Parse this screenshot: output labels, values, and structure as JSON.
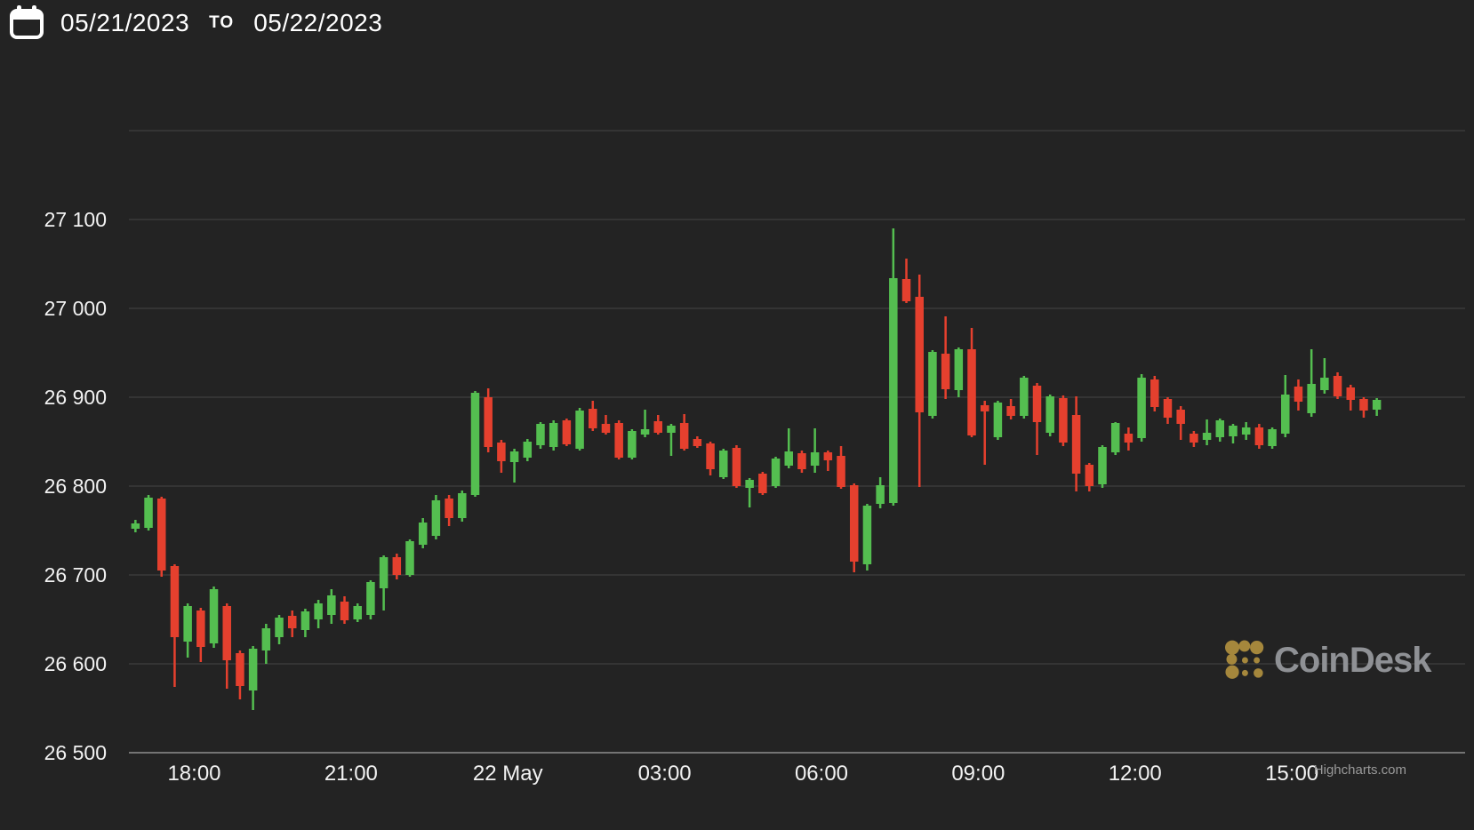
{
  "header": {
    "calendar_icon": "calendar-icon",
    "start_date": "05/21/2023",
    "to_label": "TO",
    "end_date": "05/22/2023"
  },
  "watermark": {
    "brand": "CoinDesk"
  },
  "credit": {
    "label": "Highcharts.com"
  },
  "colors": {
    "background": "#232323",
    "up": "#54BE50",
    "down": "#E5402E",
    "grid": "#3B3B3B",
    "axis_line": "#747474",
    "label": "#F2F2F2",
    "watermark_icon": "#A5873C",
    "watermark_text": "#8F9195",
    "credit_text": "#9A9A9A"
  },
  "chart_data": {
    "type": "candlestick",
    "title": "",
    "xlabel": "",
    "ylabel": "",
    "interval_minutes": 15,
    "start": "2023-05-21 16:45",
    "day_split_index": 29,
    "ylim": [
      26500,
      27200
    ],
    "y_ticks": [
      26500,
      26600,
      26700,
      26800,
      26900,
      27000,
      27100
    ],
    "y_gridlines": [
      26500,
      26600,
      26700,
      26800,
      26900,
      27000,
      27100,
      27200
    ],
    "x_ticks": [
      {
        "label": "18:00",
        "index": 5
      },
      {
        "label": "21:00",
        "index": 17
      },
      {
        "label": "22 May",
        "index": 29
      },
      {
        "label": "03:00",
        "index": 41
      },
      {
        "label": "06:00",
        "index": 53
      },
      {
        "label": "09:00",
        "index": 65
      },
      {
        "label": "12:00",
        "index": 77
      },
      {
        "label": "15:00",
        "index": 89
      }
    ],
    "legend": "none",
    "grid": "horizontal-only",
    "ohlc": {
      "columns": [
        "time",
        "open",
        "high",
        "low",
        "close"
      ],
      "values": [
        [
          "16:45",
          26752,
          26762,
          26748,
          26758
        ],
        [
          "17:00",
          26753,
          26790,
          26750,
          26787
        ],
        [
          "17:15",
          26786,
          26788,
          26698,
          26705
        ],
        [
          "17:30",
          26710,
          26712,
          26574,
          26630
        ],
        [
          "17:45",
          26625,
          26668,
          26607,
          26665
        ],
        [
          "18:00",
          26660,
          26663,
          26602,
          26619
        ],
        [
          "18:15",
          26623,
          26687,
          26618,
          26684
        ],
        [
          "18:30",
          26665,
          26668,
          26572,
          26604
        ],
        [
          "18:45",
          26612,
          26615,
          26560,
          26575
        ],
        [
          "19:00",
          26570,
          26620,
          26548,
          26617
        ],
        [
          "19:15",
          26615,
          26645,
          26600,
          26640
        ],
        [
          "19:30",
          26630,
          26655,
          26622,
          26652
        ],
        [
          "19:45",
          26654,
          26660,
          26630,
          26640
        ],
        [
          "20:00",
          26638,
          26662,
          26630,
          26659
        ],
        [
          "20:15",
          26650,
          26672,
          26640,
          26668
        ],
        [
          "20:30",
          26655,
          26684,
          26645,
          26677
        ],
        [
          "20:45",
          26670,
          26676,
          26645,
          26649
        ],
        [
          "21:00",
          26650,
          26668,
          26647,
          26665
        ],
        [
          "21:15",
          26655,
          26694,
          26650,
          26692
        ],
        [
          "21:30",
          26685,
          26722,
          26660,
          26720
        ],
        [
          "21:45",
          26720,
          26724,
          26695,
          26700
        ],
        [
          "22:00",
          26700,
          26740,
          26698,
          26738
        ],
        [
          "22:15",
          26734,
          26764,
          26730,
          26759
        ],
        [
          "22:30",
          26744,
          26790,
          26740,
          26784
        ],
        [
          "22:45",
          26786,
          26790,
          26755,
          26764
        ],
        [
          "23:00",
          26764,
          26795,
          26760,
          26792
        ],
        [
          "23:15",
          26790,
          26907,
          26788,
          26905
        ],
        [
          "23:30",
          26900,
          26910,
          26838,
          26844
        ],
        [
          "23:45",
          26849,
          26852,
          26815,
          26828
        ],
        [
          "00:00",
          26827,
          26842,
          26804,
          26839
        ],
        [
          "00:15",
          26832,
          26853,
          26828,
          26850
        ],
        [
          "00:30",
          26846,
          26872,
          26842,
          26870
        ],
        [
          "00:45",
          26844,
          26874,
          26840,
          26871
        ],
        [
          "01:00",
          26874,
          26876,
          26845,
          26847
        ],
        [
          "01:15",
          26842,
          26888,
          26840,
          26885
        ],
        [
          "01:30",
          26887,
          26896,
          26862,
          26865
        ],
        [
          "01:45",
          26870,
          26880,
          26858,
          26860
        ],
        [
          "02:00",
          26871,
          26874,
          26830,
          26832
        ],
        [
          "02:15",
          26832,
          26864,
          26830,
          26862
        ],
        [
          "02:30",
          26858,
          26886,
          26855,
          26864
        ],
        [
          "02:45",
          26873,
          26880,
          26858,
          26860
        ],
        [
          "03:00",
          26860,
          26870,
          26834,
          26868
        ],
        [
          "03:15",
          26871,
          26881,
          26840,
          26842
        ],
        [
          "03:30",
          26853,
          26856,
          26843,
          26845
        ],
        [
          "03:45",
          26848,
          26850,
          26812,
          26819
        ],
        [
          "04:00",
          26810,
          26842,
          26808,
          26840
        ],
        [
          "04:15",
          26843,
          26846,
          26798,
          26800
        ],
        [
          "04:30",
          26798,
          26809,
          26776,
          26807
        ],
        [
          "04:45",
          26814,
          26816,
          26790,
          26792
        ],
        [
          "05:00",
          26800,
          26833,
          26798,
          26831
        ],
        [
          "05:15",
          26823,
          26865,
          26820,
          26839
        ],
        [
          "05:30",
          26837,
          26840,
          26815,
          26819
        ],
        [
          "05:45",
          26823,
          26865,
          26815,
          26838
        ],
        [
          "06:00",
          26838,
          26840,
          26817,
          26829
        ],
        [
          "06:15",
          26834,
          26845,
          26797,
          26799
        ],
        [
          "06:30",
          26801,
          26803,
          26703,
          26715
        ],
        [
          "06:45",
          26712,
          26780,
          26705,
          26778
        ],
        [
          "07:00",
          26780,
          26810,
          26775,
          26801
        ],
        [
          "07:15",
          26781,
          27090,
          26778,
          27034
        ],
        [
          "07:30",
          27033,
          27056,
          27006,
          27008
        ],
        [
          "07:45",
          27013,
          27038,
          26799,
          26883
        ],
        [
          "08:00",
          26879,
          26953,
          26876,
          26951
        ],
        [
          "08:15",
          26949,
          26991,
          26898,
          26909
        ],
        [
          "08:30",
          26908,
          26956,
          26900,
          26954
        ],
        [
          "08:45",
          26954,
          26978,
          26855,
          26857
        ],
        [
          "09:00",
          26891,
          26896,
          26824,
          26884
        ],
        [
          "09:15",
          26855,
          26896,
          26852,
          26894
        ],
        [
          "09:30",
          26890,
          26898,
          26875,
          26879
        ],
        [
          "09:45",
          26879,
          26924,
          26876,
          26922
        ],
        [
          "10:00",
          26913,
          26916,
          26835,
          26872
        ],
        [
          "10:15",
          26860,
          26903,
          26856,
          26901
        ],
        [
          "10:30",
          26899,
          26902,
          26845,
          26849
        ],
        [
          "10:45",
          26880,
          26901,
          26794,
          26814
        ],
        [
          "11:00",
          26824,
          26826,
          26794,
          26800
        ],
        [
          "11:15",
          26802,
          26846,
          26798,
          26844
        ],
        [
          "11:30",
          26838,
          26872,
          26835,
          26871
        ],
        [
          "11:45",
          26859,
          26866,
          26840,
          26849
        ],
        [
          "12:00",
          26854,
          26926,
          26850,
          26922
        ],
        [
          "12:15",
          26920,
          26924,
          26884,
          26889
        ],
        [
          "12:30",
          26898,
          26900,
          26870,
          26877
        ],
        [
          "12:45",
          26886,
          26890,
          26852,
          26870
        ],
        [
          "13:00",
          26859,
          26862,
          26844,
          26849
        ],
        [
          "13:15",
          26852,
          26875,
          26846,
          26860
        ],
        [
          "13:30",
          26855,
          26876,
          26850,
          26874
        ],
        [
          "13:45",
          26856,
          26870,
          26848,
          26868
        ],
        [
          "14:00",
          26858,
          26872,
          26852,
          26866
        ],
        [
          "14:15",
          26866,
          26870,
          26842,
          26846
        ],
        [
          "14:30",
          26845,
          26866,
          26842,
          26864
        ],
        [
          "14:45",
          26859,
          26925,
          26855,
          26903
        ],
        [
          "15:00",
          26912,
          26920,
          26885,
          26895
        ],
        [
          "15:15",
          26882,
          26954,
          26878,
          26915
        ],
        [
          "15:30",
          26908,
          26944,
          26904,
          26922
        ],
        [
          "15:45",
          26924,
          26928,
          26898,
          26901
        ],
        [
          "16:00",
          26911,
          26914,
          26885,
          26897
        ],
        [
          "16:15",
          26898,
          26900,
          26877,
          26885
        ],
        [
          "16:30",
          26886,
          26899,
          26879,
          26897
        ]
      ]
    }
  }
}
